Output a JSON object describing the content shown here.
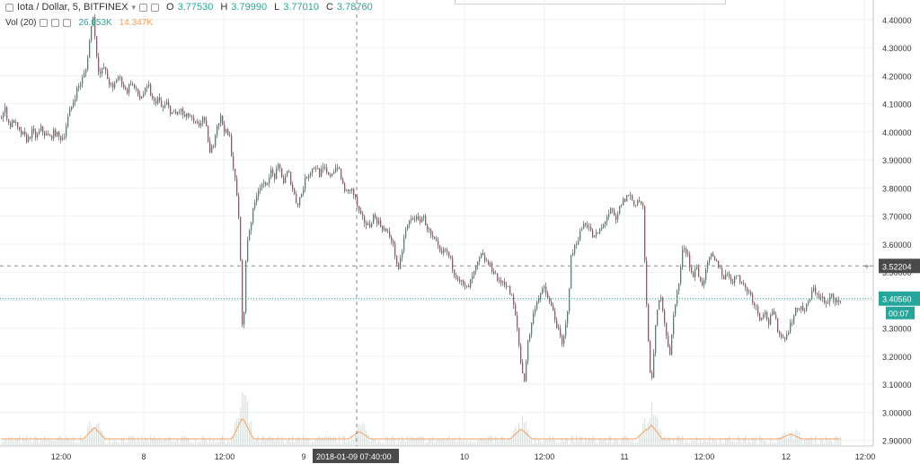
{
  "header": {
    "symbol": "Iota / Dollar, 5, BITFINEX",
    "ohlc": {
      "open_label": "O",
      "open": "3.77530",
      "high_label": "H",
      "high": "3.79990",
      "low_label": "L",
      "low": "3.77010",
      "close_label": "C",
      "close": "3.78760"
    },
    "volume_label": "Vol (20)",
    "volume_value": "26.053K",
    "volume_ma": "14.347K",
    "collapse_icon": "collapse-square-icon",
    "settings_icon": "gear-icon"
  },
  "colors": {
    "up": "#26a69a",
    "down": "#ef5350",
    "candle_up": "#3d8c70",
    "candle_down": "#c2454d",
    "volume_ma": "#f5a05c",
    "grid": "#eef0f3",
    "axis_text": "#333333"
  },
  "chart_data": {
    "type": "candlestick",
    "x_ticks": [
      "12:00",
      "8",
      "12:00",
      "9",
      "2018-01-09 07:40:00",
      "10",
      "12:00",
      "11",
      "12:00",
      "12",
      "12:00"
    ],
    "y_ticks": [
      "2.90000",
      "3.00000",
      "3.10000",
      "3.20000",
      "3.30000",
      "3.40000",
      "3.50000",
      "3.60000",
      "3.70000",
      "3.80000",
      "3.90000",
      "4.00000",
      "4.10000",
      "4.20000",
      "4.30000",
      "4.40000"
    ],
    "y_range": [
      2.88,
      4.47
    ],
    "crosshair_label": "2018-01-09 07:40:00",
    "crosshair_price": "3.52204",
    "last_price": "3.40560",
    "countdown": "00:07",
    "price_path_points": [
      [
        0,
        4.05
      ],
      [
        5,
        4.08
      ],
      [
        10,
        4.02
      ],
      [
        15,
        4.04
      ],
      [
        20,
        4.0
      ],
      [
        25,
        3.99
      ],
      [
        30,
        3.97
      ],
      [
        35,
        4.0
      ],
      [
        40,
        3.98
      ],
      [
        45,
        4.01
      ],
      [
        50,
        3.99
      ],
      [
        55,
        3.98
      ],
      [
        60,
        4.0
      ],
      [
        65,
        3.98
      ],
      [
        70,
        3.98
      ],
      [
        75,
        4.05
      ],
      [
        80,
        4.1
      ],
      [
        85,
        4.15
      ],
      [
        90,
        4.18
      ],
      [
        95,
        4.22
      ],
      [
        100,
        4.35
      ],
      [
        103,
        4.42
      ],
      [
        106,
        4.3
      ],
      [
        110,
        4.2
      ],
      [
        115,
        4.23
      ],
      [
        120,
        4.18
      ],
      [
        125,
        4.15
      ],
      [
        130,
        4.2
      ],
      [
        135,
        4.18
      ],
      [
        140,
        4.14
      ],
      [
        145,
        4.18
      ],
      [
        150,
        4.15
      ],
      [
        155,
        4.12
      ],
      [
        160,
        4.14
      ],
      [
        165,
        4.16
      ],
      [
        170,
        4.1
      ],
      [
        175,
        4.12
      ],
      [
        180,
        4.08
      ],
      [
        185,
        4.1
      ],
      [
        190,
        4.07
      ],
      [
        195,
        4.06
      ],
      [
        200,
        4.08
      ],
      [
        205,
        4.05
      ],
      [
        210,
        4.06
      ],
      [
        215,
        4.03
      ],
      [
        220,
        4.02
      ],
      [
        225,
        4.05
      ],
      [
        230,
        4.0
      ],
      [
        233,
        3.92
      ],
      [
        237,
        3.96
      ],
      [
        240,
        4.02
      ],
      [
        245,
        4.05
      ],
      [
        250,
        4.0
      ],
      [
        255,
        3.98
      ],
      [
        258,
        3.9
      ],
      [
        262,
        3.8
      ],
      [
        265,
        3.7
      ],
      [
        268,
        3.45
      ],
      [
        270,
        3.2
      ],
      [
        272,
        3.5
      ],
      [
        275,
        3.62
      ],
      [
        280,
        3.7
      ],
      [
        285,
        3.78
      ],
      [
        290,
        3.82
      ],
      [
        295,
        3.8
      ],
      [
        300,
        3.86
      ],
      [
        305,
        3.84
      ],
      [
        310,
        3.88
      ],
      [
        315,
        3.82
      ],
      [
        320,
        3.86
      ],
      [
        325,
        3.8
      ],
      [
        330,
        3.74
      ],
      [
        335,
        3.78
      ],
      [
        340,
        3.84
      ],
      [
        345,
        3.86
      ],
      [
        350,
        3.88
      ],
      [
        355,
        3.85
      ],
      [
        360,
        3.87
      ],
      [
        365,
        3.84
      ],
      [
        370,
        3.86
      ],
      [
        375,
        3.88
      ],
      [
        380,
        3.82
      ],
      [
        385,
        3.78
      ],
      [
        390,
        3.8
      ],
      [
        395,
        3.76
      ],
      [
        400,
        3.7
      ],
      [
        405,
        3.68
      ],
      [
        410,
        3.66
      ],
      [
        415,
        3.7
      ],
      [
        420,
        3.68
      ],
      [
        425,
        3.66
      ],
      [
        430,
        3.64
      ],
      [
        435,
        3.62
      ],
      [
        440,
        3.55
      ],
      [
        443,
        3.5
      ],
      [
        447,
        3.58
      ],
      [
        450,
        3.64
      ],
      [
        455,
        3.68
      ],
      [
        460,
        3.7
      ],
      [
        465,
        3.68
      ],
      [
        470,
        3.7
      ],
      [
        475,
        3.66
      ],
      [
        480,
        3.62
      ],
      [
        485,
        3.6
      ],
      [
        490,
        3.56
      ],
      [
        495,
        3.58
      ],
      [
        500,
        3.55
      ],
      [
        505,
        3.5
      ],
      [
        510,
        3.48
      ],
      [
        515,
        3.45
      ],
      [
        520,
        3.44
      ],
      [
        525,
        3.48
      ],
      [
        530,
        3.52
      ],
      [
        535,
        3.56
      ],
      [
        540,
        3.54
      ],
      [
        545,
        3.52
      ],
      [
        550,
        3.5
      ],
      [
        555,
        3.46
      ],
      [
        560,
        3.47
      ],
      [
        565,
        3.44
      ],
      [
        570,
        3.4
      ],
      [
        575,
        3.3
      ],
      [
        580,
        3.15
      ],
      [
        583,
        3.12
      ],
      [
        587,
        3.25
      ],
      [
        590,
        3.3
      ],
      [
        595,
        3.38
      ],
      [
        600,
        3.42
      ],
      [
        605,
        3.44
      ],
      [
        610,
        3.4
      ],
      [
        615,
        3.36
      ],
      [
        620,
        3.3
      ],
      [
        625,
        3.24
      ],
      [
        628,
        3.28
      ],
      [
        632,
        3.4
      ],
      [
        635,
        3.55
      ],
      [
        640,
        3.6
      ],
      [
        645,
        3.64
      ],
      [
        650,
        3.68
      ],
      [
        655,
        3.66
      ],
      [
        660,
        3.62
      ],
      [
        665,
        3.64
      ],
      [
        670,
        3.66
      ],
      [
        675,
        3.7
      ],
      [
        680,
        3.72
      ],
      [
        685,
        3.68
      ],
      [
        690,
        3.74
      ],
      [
        695,
        3.76
      ],
      [
        700,
        3.78
      ],
      [
        705,
        3.74
      ],
      [
        710,
        3.76
      ],
      [
        715,
        3.73
      ],
      [
        718,
        3.45
      ],
      [
        720,
        3.3
      ],
      [
        724,
        3.1
      ],
      [
        727,
        3.2
      ],
      [
        730,
        3.35
      ],
      [
        735,
        3.42
      ],
      [
        740,
        3.3
      ],
      [
        745,
        3.2
      ],
      [
        750,
        3.38
      ],
      [
        755,
        3.46
      ],
      [
        760,
        3.6
      ],
      [
        765,
        3.56
      ],
      [
        770,
        3.48
      ],
      [
        775,
        3.52
      ],
      [
        780,
        3.45
      ],
      [
        785,
        3.5
      ],
      [
        790,
        3.56
      ],
      [
        795,
        3.54
      ],
      [
        800,
        3.52
      ],
      [
        805,
        3.48
      ],
      [
        810,
        3.5
      ],
      [
        815,
        3.46
      ],
      [
        820,
        3.5
      ],
      [
        825,
        3.46
      ],
      [
        830,
        3.44
      ],
      [
        835,
        3.42
      ],
      [
        840,
        3.38
      ],
      [
        845,
        3.34
      ],
      [
        850,
        3.36
      ],
      [
        855,
        3.32
      ],
      [
        860,
        3.36
      ],
      [
        865,
        3.3
      ],
      [
        870,
        3.26
      ],
      [
        875,
        3.28
      ],
      [
        880,
        3.32
      ],
      [
        885,
        3.36
      ],
      [
        890,
        3.38
      ],
      [
        895,
        3.36
      ],
      [
        900,
        3.4
      ],
      [
        905,
        3.44
      ],
      [
        910,
        3.42
      ],
      [
        915,
        3.4
      ],
      [
        920,
        3.38
      ],
      [
        925,
        3.42
      ],
      [
        930,
        3.4
      ],
      [
        936,
        3.38
      ]
    ],
    "volume_spikes": [
      [
        105,
        0.45
      ],
      [
        270,
        0.85
      ],
      [
        400,
        0.3
      ],
      [
        580,
        0.4
      ],
      [
        725,
        0.55
      ],
      [
        720,
        0.4
      ],
      [
        880,
        0.2
      ]
    ]
  }
}
